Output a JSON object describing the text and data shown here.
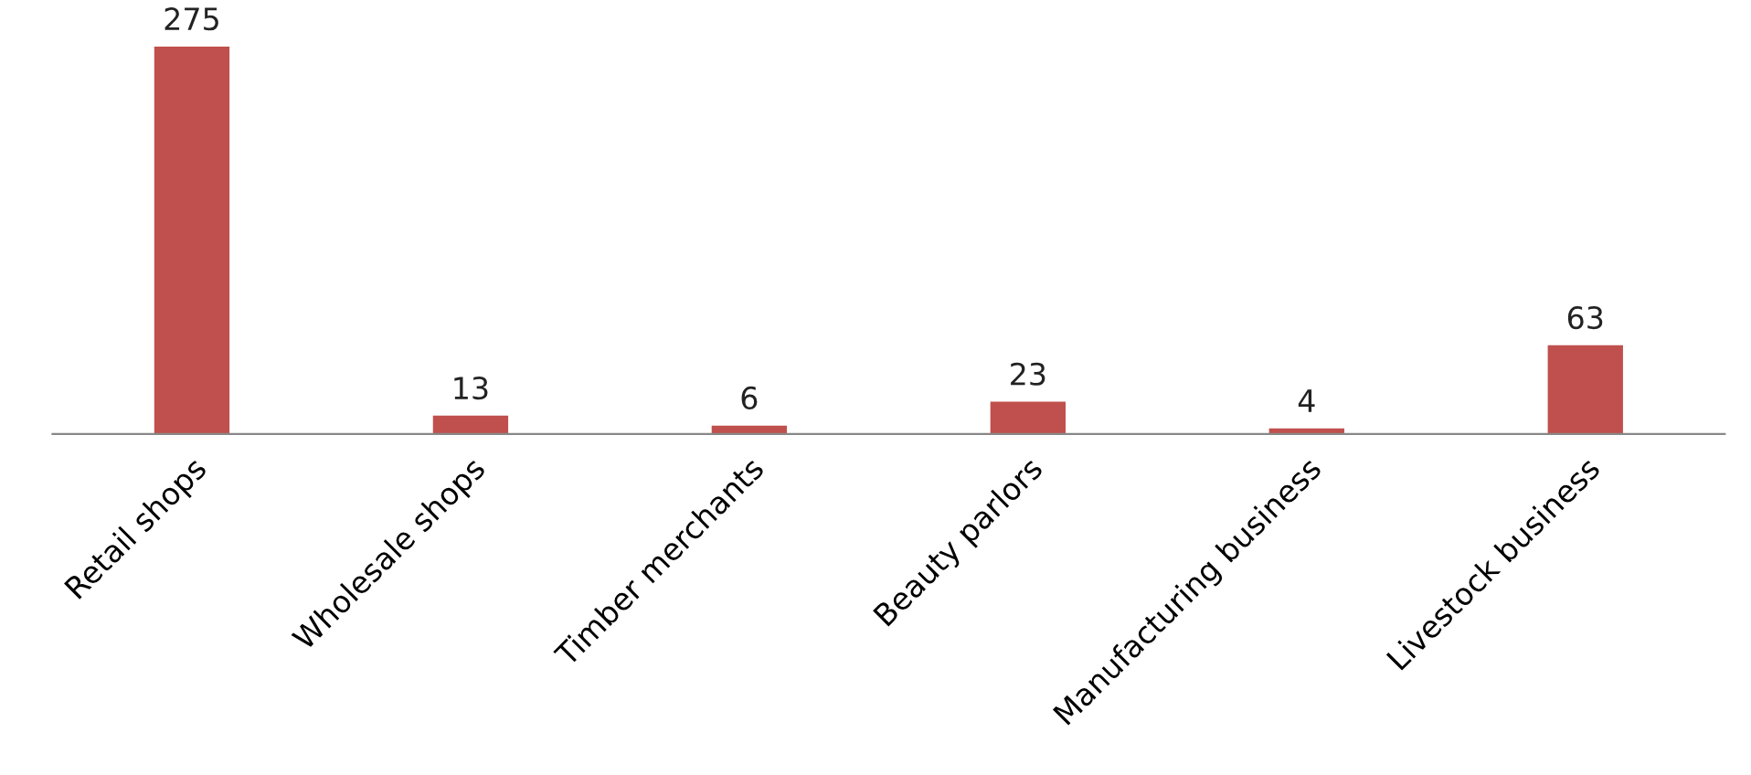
{
  "chart_data": {
    "type": "bar",
    "categories": [
      "Retail shops",
      "Wholesale shops",
      "Timber merchants",
      "Beauty parlors",
      "Manufacturing business",
      "Livestock business"
    ],
    "values": [
      275,
      13,
      6,
      23,
      4,
      63
    ],
    "color": "#c0504d",
    "data_labels": true,
    "grid": false,
    "legend": false
  }
}
